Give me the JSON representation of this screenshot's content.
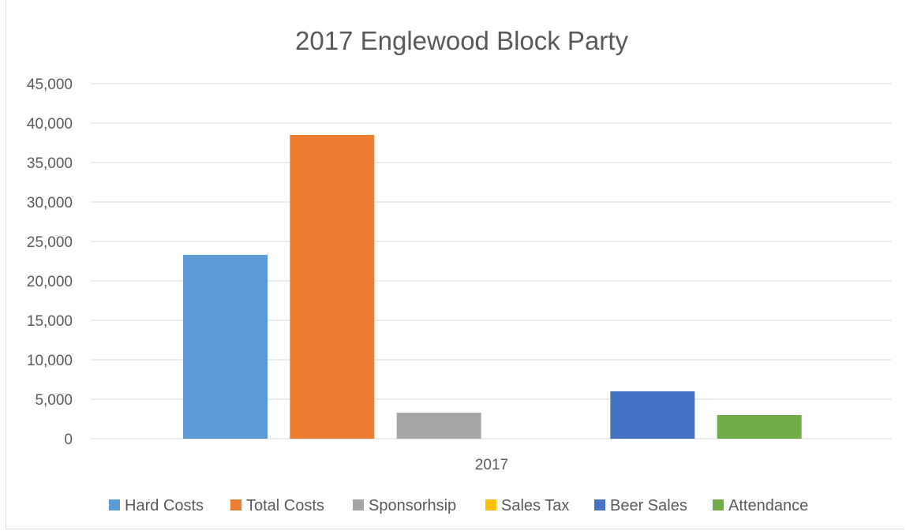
{
  "chart_data": {
    "type": "bar",
    "title": "2017 Englewood Block Party",
    "categories": [
      "2017"
    ],
    "series": [
      {
        "name": "Hard Costs",
        "color": "#5b9bd5",
        "values": [
          23300
        ]
      },
      {
        "name": "Total Costs",
        "color": "#ed7d31",
        "values": [
          38500
        ]
      },
      {
        "name": "Sponsorhsip",
        "color": "#a5a5a5",
        "values": [
          3300
        ]
      },
      {
        "name": "Sales Tax",
        "color": "#ffc000",
        "values": [
          0
        ]
      },
      {
        "name": "Beer Sales",
        "color": "#4472c4",
        "values": [
          6000
        ]
      },
      {
        "name": "Attendance",
        "color": "#70ad47",
        "values": [
          3000
        ]
      }
    ],
    "ylim": [
      0,
      45000
    ],
    "yticks": [
      "0",
      "5,000",
      "10,000",
      "15,000",
      "20,000",
      "25,000",
      "30,000",
      "35,000",
      "40,000",
      "45,000"
    ],
    "grid": true,
    "legend_position": "bottom",
    "gridline_color": "#d9d9d9",
    "text_color": "#595959"
  }
}
